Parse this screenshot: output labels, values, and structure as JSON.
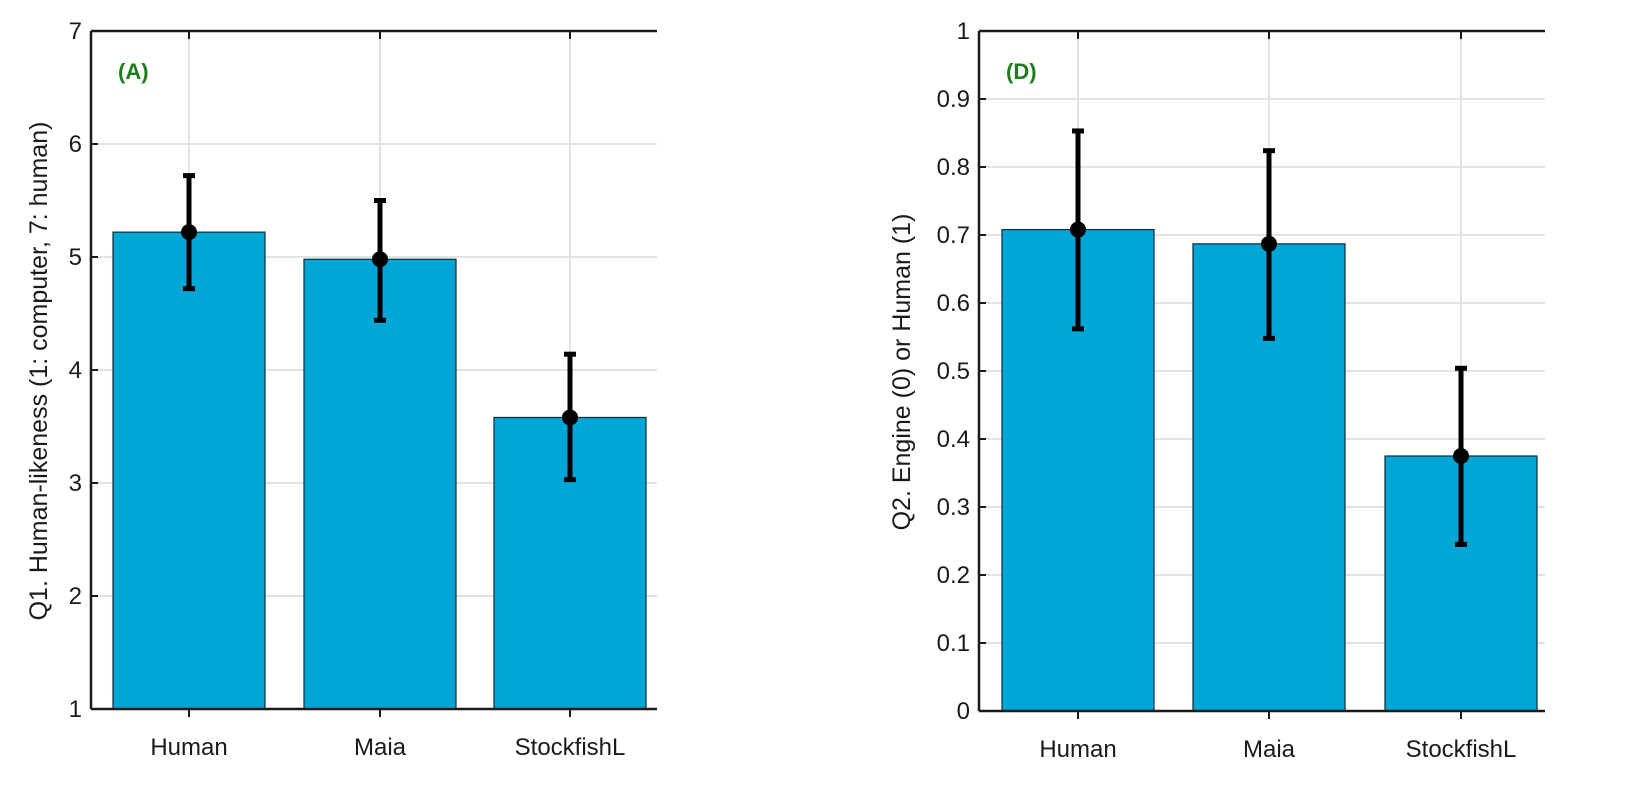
{
  "colors": {
    "bar_fill": "#00A6D6",
    "bar_stroke": "#0c2b3a",
    "error_bar": "#000000",
    "grid": "#e3e3e3",
    "axis": "#1a1a1a",
    "panel_label": "#1e7e1e"
  },
  "chart_data": [
    {
      "type": "bar",
      "panel_label": "(A)",
      "categories": [
        "Human",
        "Maia",
        "StockfishL"
      ],
      "values": [
        5.22,
        4.98,
        3.58
      ],
      "error_low": [
        4.72,
        4.44,
        3.03
      ],
      "error_high": [
        5.72,
        5.5,
        4.14
      ],
      "xlabel": "",
      "ylabel": "Q1. Human-likeness (1: computer, 7: human)",
      "ylim": [
        1,
        7
      ],
      "yticks": [
        "1",
        "2",
        "3",
        "4",
        "5",
        "6",
        "7"
      ],
      "grid": true,
      "legend": "none"
    },
    {
      "type": "bar",
      "panel_label": "(D)",
      "categories": [
        "Human",
        "Maia",
        "StockfishL"
      ],
      "values": [
        0.708,
        0.687,
        0.375
      ],
      "error_low": [
        0.562,
        0.548,
        0.245
      ],
      "error_high": [
        0.853,
        0.824,
        0.504
      ],
      "xlabel": "",
      "ylabel": "Q2. Engine (0) or Human (1)",
      "ylim": [
        0,
        1
      ],
      "yticks": [
        "0",
        "0.1",
        "0.2",
        "0.3",
        "0.4",
        "0.5",
        "0.6",
        "0.7",
        "0.8",
        "0.9",
        "1"
      ],
      "grid": true,
      "legend": "none"
    }
  ]
}
